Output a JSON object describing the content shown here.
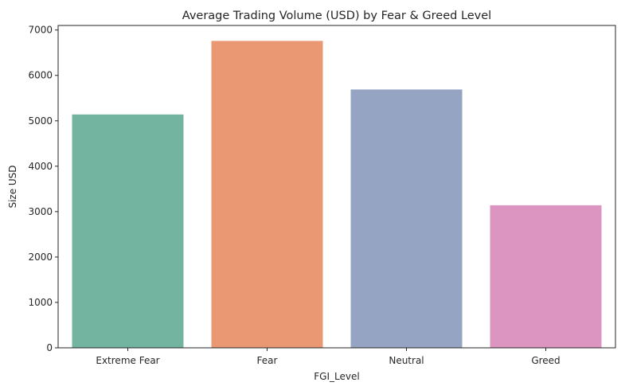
{
  "chart_data": {
    "type": "bar",
    "title": "Average Trading Volume (USD) by Fear & Greed Level",
    "xlabel": "FGI_Level",
    "ylabel": "Size USD",
    "categories": [
      "Extreme Fear",
      "Fear",
      "Neutral",
      "Greed"
    ],
    "values": [
      5140,
      6760,
      5690,
      3140
    ],
    "colors": [
      "#73b4a0",
      "#ea9874",
      "#95a4c2",
      "#dc94c0"
    ],
    "ylim": [
      0,
      7100
    ],
    "yticks": [
      0,
      1000,
      2000,
      3000,
      4000,
      5000,
      6000,
      7000
    ],
    "grid": false,
    "legend": "none"
  }
}
